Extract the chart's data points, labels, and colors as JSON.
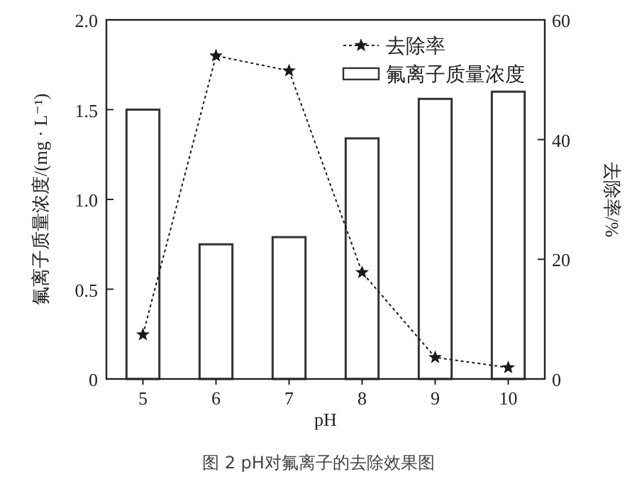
{
  "chart_data": {
    "type": "bar",
    "categories": [
      "5",
      "6",
      "7",
      "8",
      "9",
      "10"
    ],
    "series": [
      {
        "name": "氟离子质量浓度",
        "color": "#ffffff",
        "values": [
          1.5,
          0.75,
          0.79,
          1.34,
          1.56,
          1.6
        ]
      },
      {
        "name": "去除率",
        "type": "line",
        "axis": "y2",
        "color": "#1a1a1a",
        "values": [
          7.4,
          54,
          51.5,
          17.8,
          3.6,
          1.9
        ]
      }
    ],
    "xlabel": "pH",
    "ylabel": "氟离子质量浓度/(mg · L⁻¹)",
    "y2label": "去除率/%",
    "ylim": [
      0,
      2
    ],
    "yticks": [
      0,
      {
        "value": 0.5,
        "label": "0.5"
      },
      {
        "value": 1,
        "label": "1.0"
      },
      {
        "value": 1.5,
        "label": "1.5"
      },
      {
        "value": 2,
        "label": "2.0"
      }
    ],
    "y2lim": [
      0,
      60
    ],
    "y2ticks": [
      0,
      20,
      40,
      60
    ],
    "marker": "star",
    "line_style": "dotted",
    "legend": "top right",
    "grid": false,
    "annotations": [
      "图 2 pH对氟离子的去除效果图"
    ]
  }
}
